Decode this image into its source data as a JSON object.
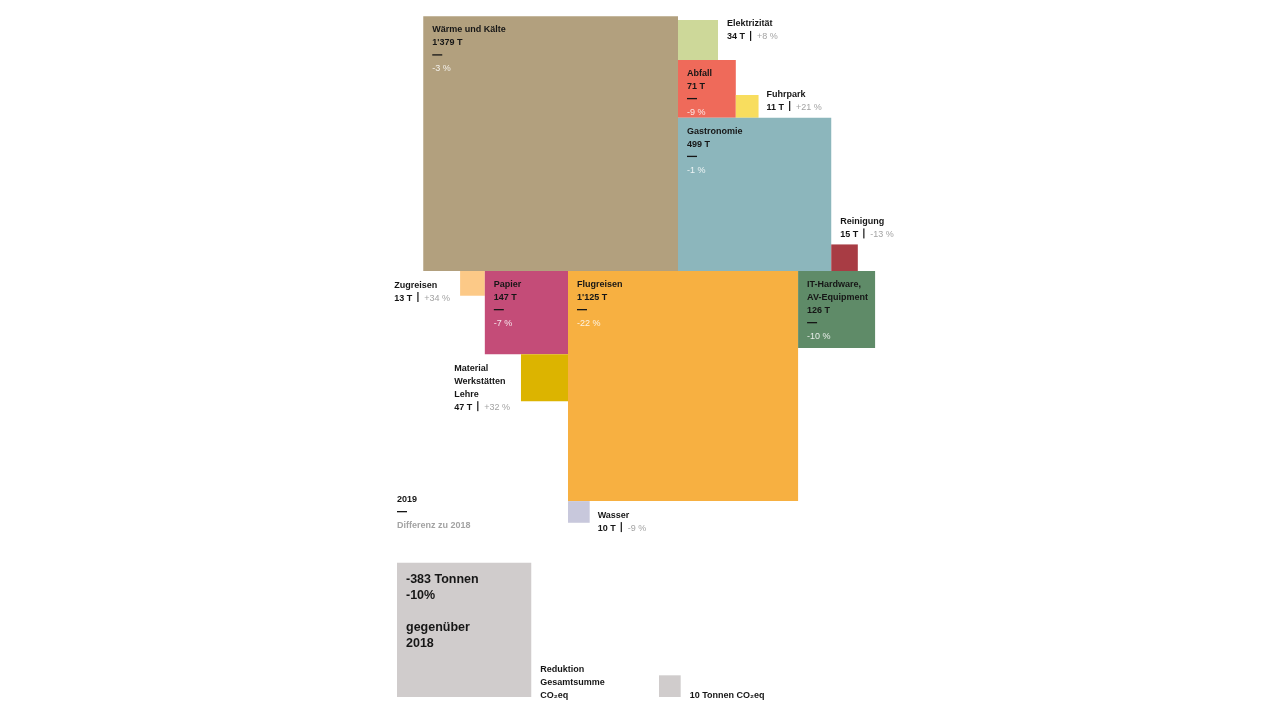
{
  "chart_data": [
    {
      "type": "other",
      "categories": [
        "Wärme und Kälte",
        "Elektrizität",
        "Abfall",
        "Fuhrpark",
        "Gastronomie",
        "Reinigung",
        "Zugreisen",
        "Papier",
        "Flugreisen",
        "IT-Hardware, AV-Equipment",
        "Material Werkstätten Lehre",
        "Wasser"
      ],
      "series": [
        {
          "name": "2019",
          "values": [
            1379,
            34,
            71,
            11,
            499,
            15,
            13,
            147,
            1125,
            126,
            47,
            10
          ],
          "colors": [
            "#b2a07e",
            "#cdd899",
            "#ef6a5a",
            "#f8dd5e",
            "#8cb6bc",
            "#a83c44",
            "#fcc987",
            "#c44c78",
            "#f7b041",
            "#5f8b68",
            "#dcb400",
            "#c8c8dc"
          ],
          "value_labels": [
            "1'379 T",
            "34 T",
            "71 T",
            "11 T",
            "499 T",
            "15 T",
            "13 T",
            "147 T",
            "1'125 T",
            "126 T",
            "47 T",
            "10 T"
          ]
        },
        {
          "name": "Differenz zu 2018",
          "values": [
            -3,
            8,
            -9,
            21,
            -1,
            -13,
            34,
            -7,
            -22,
            -10,
            32,
            -9
          ],
          "value_labels": [
            "-3 %",
            "+8 %",
            "-9 %",
            "+21 %",
            "-1 %",
            "-13 %",
            "+34 %",
            "-7 %",
            "-22 %",
            "-10 %",
            "+32 %",
            "-9 %"
          ]
        }
      ]
    },
    {
      "type": "other",
      "categories": [
        "Reduktion Gesamtsumme CO₂eq",
        "CO₂eq"
      ],
      "series": [
        {
          "color": "#d0cccc",
          "values": [
            -383,
            10
          ],
          "value_labels": [
            "-383 Tonnen",
            "10 Tonnen"
          ]
        },
        {
          "values": [
            -10,
            null
          ],
          "value_labels": [
            "-10%",
            null
          ]
        }
      ],
      "annotations": [
        "gegenüber 2018"
      ]
    }
  ]
}
